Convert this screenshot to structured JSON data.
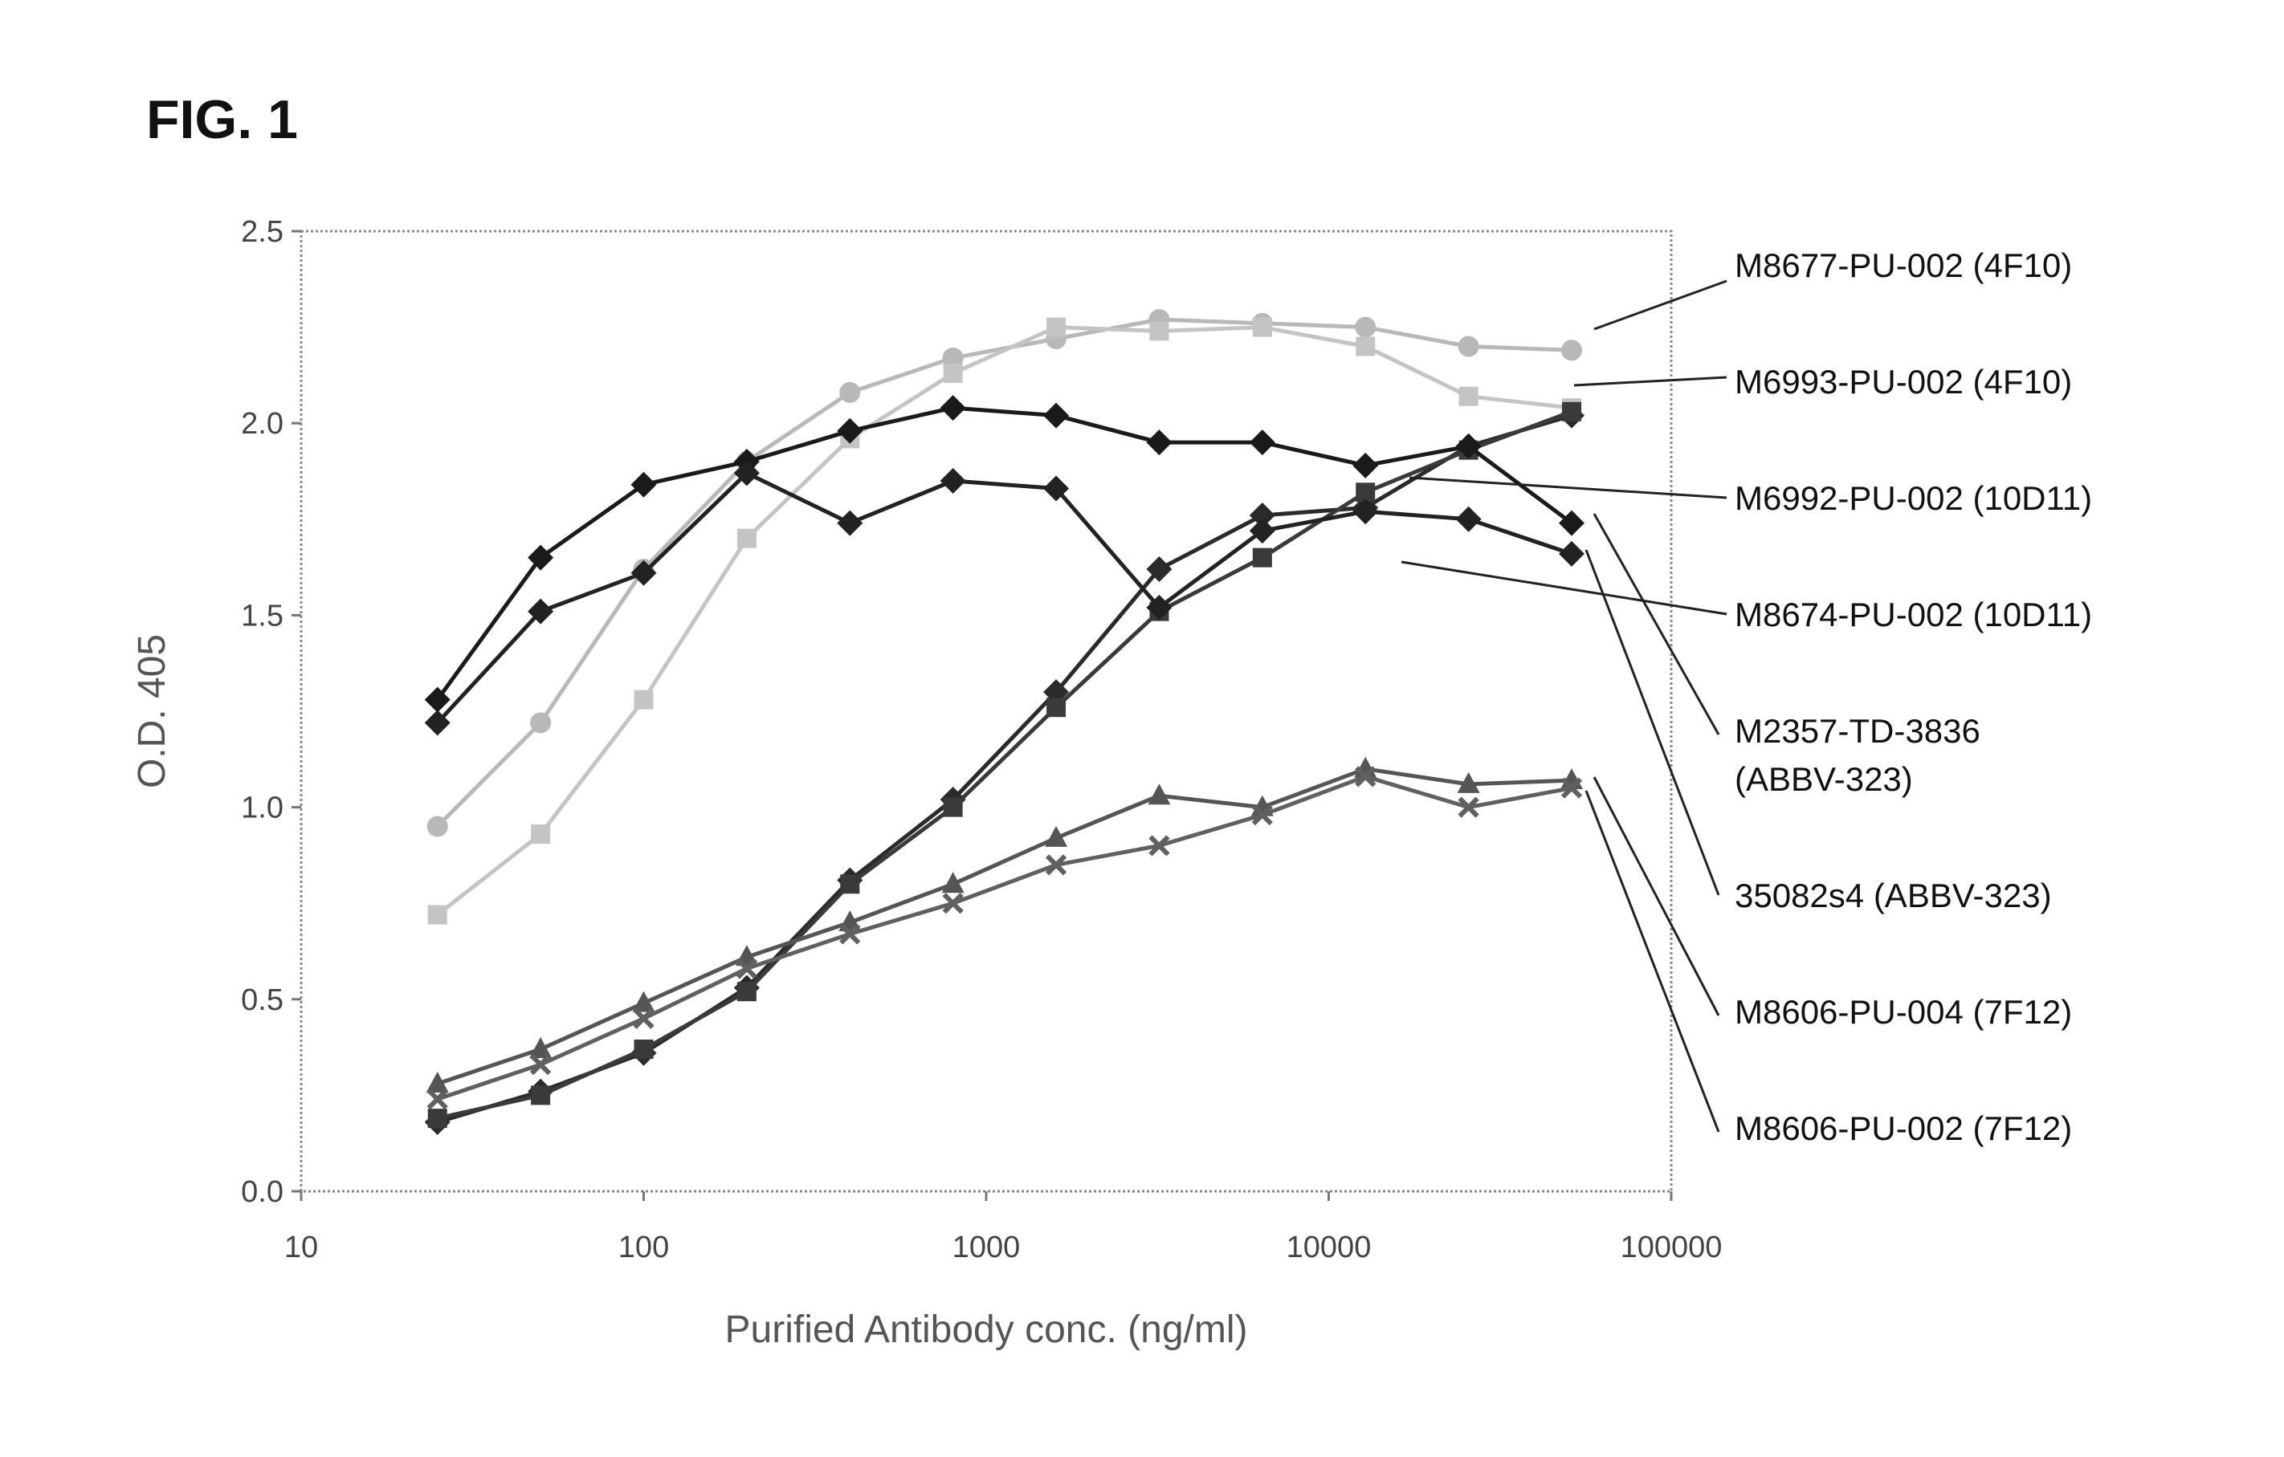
{
  "figure_label": "FIG. 1",
  "chart_data": {
    "type": "line",
    "xlabel": "Purified Antibody conc. (ng/ml)",
    "ylabel": "O.D. 405",
    "xscale": "log",
    "xlim": [
      10,
      100000
    ],
    "ylim": [
      0,
      2.5
    ],
    "x_ticks": [
      "10",
      "100",
      "1000",
      "10000",
      "100000"
    ],
    "y_ticks": [
      "0.0",
      "0.5",
      "1.0",
      "1.5",
      "2.0",
      "2.5"
    ],
    "x": [
      25,
      50,
      100,
      200,
      400,
      800,
      1600,
      3200,
      6400,
      12800,
      25600,
      51200
    ],
    "series": [
      {
        "name": "M8677-PU-002 (4F10)",
        "color": "#b8b8b8",
        "marker": "circle",
        "values": [
          0.95,
          1.22,
          1.62,
          1.9,
          2.08,
          2.17,
          2.22,
          2.27,
          2.26,
          2.25,
          2.2,
          2.19
        ]
      },
      {
        "name": "M6993-PU-002 (4F10)",
        "color": "#c4c4c4",
        "marker": "square",
        "values": [
          0.72,
          0.93,
          1.28,
          1.7,
          1.96,
          2.13,
          2.25,
          2.24,
          2.25,
          2.2,
          2.07,
          2.04
        ]
      },
      {
        "name": "M6992-PU-002 (10D11)",
        "color": "#2a2a2a",
        "marker": "diamond",
        "values": [
          0.18,
          0.26,
          0.36,
          0.53,
          0.81,
          1.02,
          1.3,
          1.62,
          1.76,
          1.78,
          1.94,
          2.02
        ]
      },
      {
        "name": "M8674-PU-002 (10D11)",
        "color": "#3a3a3a",
        "marker": "square",
        "values": [
          0.19,
          0.25,
          0.37,
          0.52,
          0.8,
          1.0,
          1.26,
          1.51,
          1.65,
          1.82,
          1.93,
          2.03
        ]
      },
      {
        "name": "M2357-TD-3836 (ABBV-323)",
        "color": "#1a1a1a",
        "marker": "diamond",
        "values": [
          1.28,
          1.65,
          1.84,
          1.9,
          1.98,
          2.04,
          2.02,
          1.95,
          1.95,
          1.89,
          1.94,
          1.74
        ]
      },
      {
        "name": "35082s4 (ABBV-323)",
        "color": "#222222",
        "marker": "diamond",
        "values": [
          1.22,
          1.51,
          1.61,
          1.87,
          1.74,
          1.85,
          1.83,
          1.52,
          1.72,
          1.77,
          1.75,
          1.66
        ]
      },
      {
        "name": "M8606-PU-004 (7F12)",
        "color": "#555555",
        "marker": "triangle",
        "values": [
          0.28,
          0.37,
          0.49,
          0.61,
          0.7,
          0.8,
          0.92,
          1.03,
          1.0,
          1.1,
          1.06,
          1.07
        ]
      },
      {
        "name": "M8606-PU-002 (7F12)",
        "color": "#606060",
        "marker": "x",
        "values": [
          0.24,
          0.33,
          0.45,
          0.58,
          0.67,
          0.75,
          0.85,
          0.9,
          0.98,
          1.08,
          1.0,
          1.05
        ]
      }
    ],
    "legend": [
      {
        "text": [
          "M8677-PU-002 (4F10)"
        ],
        "series": 0
      },
      {
        "text": [
          "M6993-PU-002 (4F10)"
        ],
        "series": 1
      },
      {
        "text": [
          "M6992-PU-002 (10D11)"
        ],
        "series": 2
      },
      {
        "text": [
          "M8674-PU-002 (10D11)"
        ],
        "series": 3
      },
      {
        "text": [
          "M2357-TD-3836",
          "(ABBV-323)"
        ],
        "series": 4
      },
      {
        "text": [
          "35082s4 (ABBV-323)"
        ],
        "series": 5
      },
      {
        "text": [
          "M8606-PU-004 (7F12)"
        ],
        "series": 6
      },
      {
        "text": [
          "M8606-PU-002 (7F12)"
        ],
        "series": 7
      }
    ],
    "legend_placement": "right, with leader lines",
    "grid": false
  }
}
